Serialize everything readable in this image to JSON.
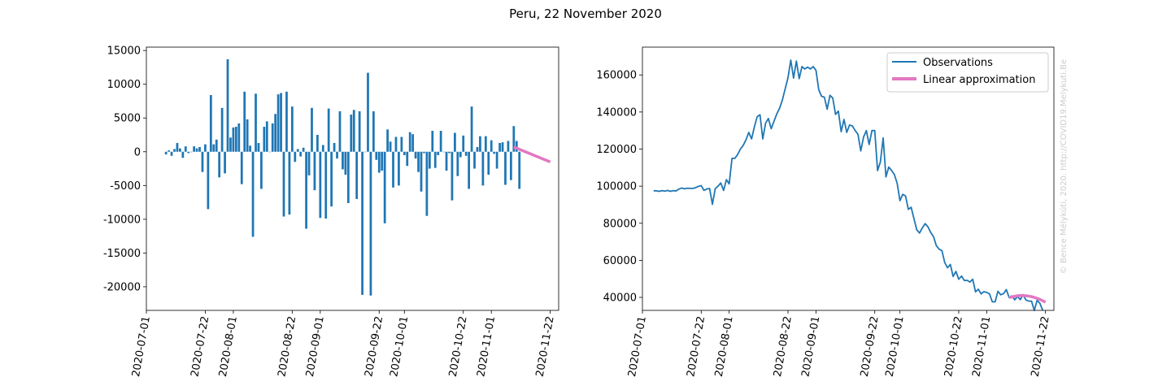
{
  "figure": {
    "title": "Peru, 22 November 2020",
    "watermark": "© Bence Mélykúti, 2020. http://COVID19.Melykuti.Be"
  },
  "colors": {
    "bars": "#1f77b4",
    "observations": "#1f77b4",
    "approximation": "#e377c2",
    "watermark": "#cccccc"
  },
  "chart_data": [
    {
      "type": "bar",
      "name": "daily-change",
      "x_start": "2020-07-08",
      "xlim": [
        "2020-07-01",
        "2020-11-25"
      ],
      "ylim": [
        -23500,
        15500
      ],
      "yticks": [
        -20000,
        -15000,
        -10000,
        -5000,
        0,
        5000,
        10000,
        15000
      ],
      "xticks": [
        "2020-07-01",
        "2020-07-22",
        "2020-08-01",
        "2020-08-22",
        "2020-09-01",
        "2020-09-22",
        "2020-10-01",
        "2020-10-22",
        "2020-11-01",
        "2020-11-22"
      ],
      "values": [
        -400,
        200,
        -600,
        400,
        1300,
        500,
        -900,
        800,
        -200,
        0,
        800,
        500,
        700,
        -3000,
        1100,
        -8500,
        8400,
        1100,
        1800,
        -3800,
        6500,
        -3200,
        13700,
        2100,
        3600,
        3700,
        4200,
        -4800,
        8900,
        4800,
        900,
        -12600,
        8600,
        1300,
        -5500,
        3700,
        4500,
        0,
        4200,
        5600,
        8500,
        8700,
        -9600,
        8900,
        -9300,
        6700,
        -1500,
        400,
        -700,
        600,
        -11400,
        -3500,
        6500,
        -5700,
        2500,
        -9800,
        1000,
        -9900,
        6400,
        -8100,
        1300,
        -1000,
        6000,
        -2600,
        -3400,
        -7600,
        5500,
        6200,
        -7000,
        6000,
        -21200,
        0,
        11700,
        -21300,
        6000,
        -1200,
        -3100,
        -2800,
        -10600,
        3300,
        1500,
        -5300,
        2200,
        -5000,
        2200,
        -500,
        -2100,
        2900,
        2600,
        -1000,
        -3000,
        -5900,
        -200,
        -9500,
        -2500,
        3100,
        -2400,
        -500,
        3100,
        0,
        -2800,
        -200,
        -7200,
        2800,
        -3600,
        -800,
        2400,
        -600,
        -5500,
        6700,
        -2500,
        700,
        2300,
        -5000,
        2300,
        -3400,
        1700,
        -300,
        -2500,
        1300,
        1400,
        -4900,
        1600,
        -4200,
        3800,
        1600,
        -5500
      ],
      "approximation": {
        "x": [
          "2020-11-09",
          "2020-11-10",
          "2020-11-11",
          "2020-11-12",
          "2020-11-13",
          "2020-11-14",
          "2020-11-15",
          "2020-11-16",
          "2020-11-17",
          "2020-11-18",
          "2020-11-19",
          "2020-11-20",
          "2020-11-21",
          "2020-11-22"
        ],
        "y": [
          700,
          530,
          360,
          190,
          20,
          -150,
          -320,
          -490,
          -660,
          -830,
          -1000,
          -1170,
          -1340,
          -1510
        ]
      }
    },
    {
      "type": "line",
      "name": "observations-chart",
      "x_start": "2020-07-05",
      "xlim": [
        "2020-07-01",
        "2020-11-25"
      ],
      "ylim": [
        33000,
        175000
      ],
      "yticks": [
        40000,
        60000,
        80000,
        100000,
        120000,
        140000,
        160000
      ],
      "xticks": [
        "2020-07-01",
        "2020-07-22",
        "2020-08-01",
        "2020-08-22",
        "2020-09-01",
        "2020-09-22",
        "2020-10-01",
        "2020-10-22",
        "2020-11-01",
        "2020-11-22"
      ],
      "series": [
        {
          "name": "Observations",
          "values": [
            97500,
            97500,
            97200,
            97600,
            97300,
            97700,
            97200,
            97600,
            97400,
            98400,
            99000,
            98600,
            98900,
            98800,
            98800,
            99200,
            99900,
            100300,
            97700,
            98500,
            98700,
            90200,
            98600,
            100000,
            101700,
            97700,
            103500,
            101200,
            115000,
            115000,
            117000,
            120000,
            122000,
            125000,
            129000,
            125500,
            132000,
            137500,
            138500,
            125500,
            134000,
            136500,
            131000,
            135000,
            139000,
            142000,
            146500,
            152500,
            158500,
            168000,
            158300,
            167500,
            158000,
            164500,
            163200,
            164200,
            163200,
            164500,
            162500,
            152000,
            148500,
            148000,
            141500,
            149000,
            147500,
            138700,
            140500,
            129400,
            136000,
            129000,
            133000,
            132500,
            130000,
            128000,
            119000,
            126500,
            130000,
            122500,
            130000,
            130000,
            108400,
            113000,
            126000,
            105000,
            110300,
            108500,
            106300,
            101600,
            92200,
            95600,
            94700,
            87500,
            88600,
            82500,
            76500,
            74700,
            77500,
            79800,
            78100,
            75000,
            72700,
            67900,
            66000,
            65200,
            58800,
            56000,
            57800,
            51300,
            54000,
            49800,
            51500,
            49100,
            49200,
            48300,
            49800,
            43000,
            44400,
            41900,
            43100,
            42700,
            41900,
            37600,
            37600,
            43300,
            41400,
            42000,
            44200,
            40000,
            40800,
            38700,
            40500,
            38800,
            41500,
            38600,
            38000,
            38000,
            33000,
            38400,
            36800,
            33000
          ]
        },
        {
          "name": "Linear approximation",
          "x": [
            "2020-11-09",
            "2020-11-10",
            "2020-11-11",
            "2020-11-12",
            "2020-11-13",
            "2020-11-14",
            "2020-11-15",
            "2020-11-16",
            "2020-11-17",
            "2020-11-18",
            "2020-11-19",
            "2020-11-20",
            "2020-11-21",
            "2020-11-22"
          ],
          "values": [
            39800,
            40300,
            40600,
            40900,
            41000,
            41000,
            40900,
            40700,
            40400,
            40000,
            39500,
            38900,
            38200,
            37400
          ]
        }
      ],
      "legend": "top-right"
    }
  ]
}
